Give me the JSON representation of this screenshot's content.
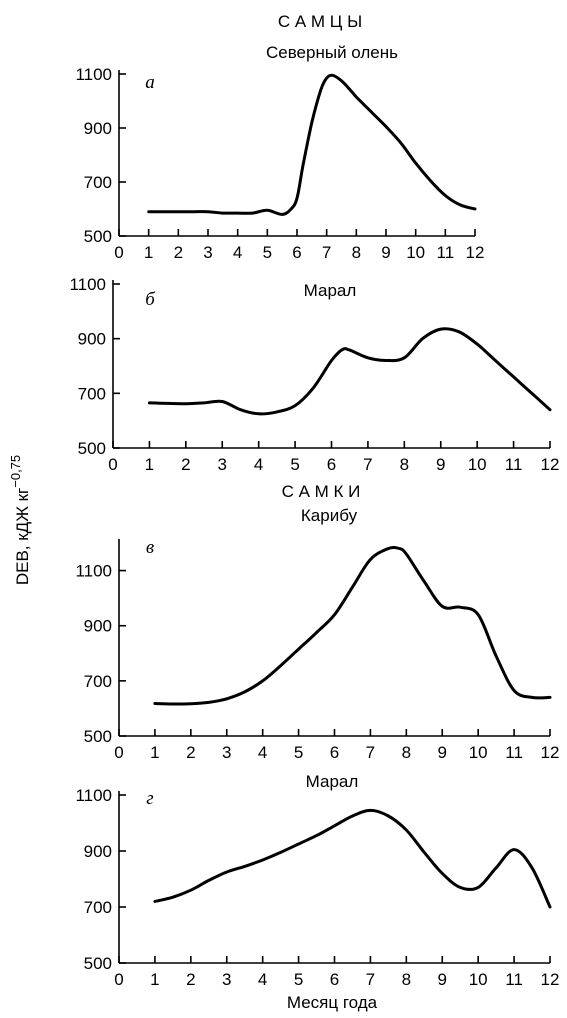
{
  "headings": {
    "males": "С А М Ц Ы",
    "females": "С А М К И"
  },
  "ylabel": "DEB, кДЖ кг",
  "ylabel_exp": "−0,75",
  "xlabel": "Месяц года",
  "chart_data": [
    {
      "type": "line",
      "panel": "а",
      "title": "Северный олень",
      "xlim": [
        0,
        12
      ],
      "ylim": [
        500,
        1100
      ],
      "xticks": [
        0,
        1,
        2,
        3,
        4,
        5,
        6,
        7,
        8,
        9,
        10,
        11,
        12
      ],
      "yticks": [
        500,
        700,
        900,
        1100
      ],
      "x": [
        1,
        1.5,
        2,
        2.5,
        3,
        3.5,
        4,
        4.5,
        5,
        5.5,
        5.8,
        6,
        6.2,
        6.5,
        6.8,
        7,
        7.2,
        7.5,
        7.8,
        8,
        8.5,
        9,
        9.5,
        10,
        10.5,
        11,
        11.5,
        12
      ],
      "y": [
        590,
        590,
        590,
        590,
        590,
        585,
        585,
        585,
        595,
        580,
        600,
        640,
        760,
        920,
        1040,
        1085,
        1095,
        1075,
        1040,
        1015,
        960,
        905,
        845,
        770,
        705,
        650,
        615,
        600
      ]
    },
    {
      "type": "line",
      "panel": "б",
      "title": "Марал",
      "xlim": [
        0,
        12
      ],
      "ylim": [
        500,
        1100
      ],
      "xticks": [
        0,
        1,
        2,
        3,
        4,
        5,
        6,
        7,
        8,
        9,
        10,
        11,
        12
      ],
      "yticks": [
        500,
        700,
        900,
        1100
      ],
      "x": [
        1,
        1.5,
        2,
        2.5,
        3,
        3.5,
        4,
        4.5,
        5,
        5.5,
        6,
        6.3,
        6.5,
        7,
        7.5,
        8,
        8.5,
        9,
        9.5,
        10,
        10.5,
        11,
        11.5,
        12
      ],
      "y": [
        665,
        663,
        662,
        665,
        670,
        640,
        625,
        632,
        655,
        720,
        820,
        860,
        858,
        830,
        820,
        830,
        900,
        935,
        925,
        880,
        820,
        760,
        700,
        640
      ]
    },
    {
      "type": "line",
      "panel": "в",
      "title": "Карибу",
      "xlim": [
        0,
        12
      ],
      "ylim": [
        500,
        1200
      ],
      "xticks": [
        0,
        1,
        2,
        3,
        4,
        5,
        6,
        7,
        8,
        9,
        10,
        11,
        12
      ],
      "yticks": [
        500,
        700,
        900,
        1100
      ],
      "x": [
        1,
        1.5,
        2,
        2.5,
        3,
        3.5,
        4,
        4.5,
        5,
        5.5,
        6,
        6.5,
        7,
        7.5,
        7.8,
        8,
        8.5,
        9,
        9.5,
        10,
        10.5,
        11,
        11.5,
        12
      ],
      "y": [
        618,
        616,
        617,
        622,
        635,
        660,
        700,
        755,
        815,
        875,
        940,
        1040,
        1140,
        1180,
        1180,
        1160,
        1060,
        970,
        967,
        940,
        790,
        665,
        640,
        640
      ]
    },
    {
      "type": "line",
      "panel": "г",
      "title": "Марал",
      "xlim": [
        0,
        12
      ],
      "ylim": [
        500,
        1100
      ],
      "xticks": [
        0,
        1,
        2,
        3,
        4,
        5,
        6,
        7,
        8,
        9,
        10,
        11,
        12
      ],
      "yticks": [
        500,
        700,
        900,
        1100
      ],
      "x": [
        1,
        1.5,
        2,
        2.5,
        3,
        3.5,
        4,
        4.5,
        5,
        5.5,
        6,
        6.5,
        7,
        7.5,
        8,
        8.5,
        9,
        9.5,
        10,
        10.5,
        11,
        11.5,
        12
      ],
      "y": [
        720,
        735,
        760,
        795,
        825,
        845,
        868,
        895,
        925,
        955,
        990,
        1025,
        1045,
        1025,
        975,
        895,
        820,
        770,
        770,
        840,
        905,
        840,
        700
      ]
    }
  ]
}
